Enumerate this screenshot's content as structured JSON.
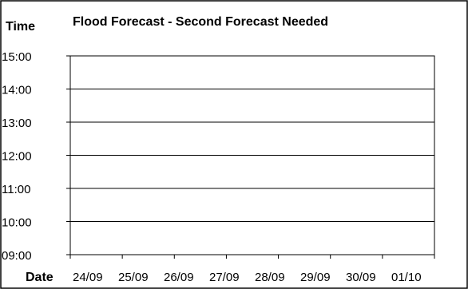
{
  "chart_data": {
    "type": "line",
    "title": "Flood Forecast - Second Forecast Needed",
    "ylabel": "Time",
    "xlabel": "Date",
    "y_ticks": [
      "15:00",
      "14:00",
      "13:00",
      "12:00",
      "11:00",
      "10:00",
      "09:00"
    ],
    "x_ticks": [
      "24/09",
      "25/09",
      "26/09",
      "27/09",
      "28/09",
      "29/09",
      "30/09",
      "01/10"
    ],
    "ylim": [
      "09:00",
      "15:00"
    ],
    "xlim": [
      "24/09",
      "01/10"
    ],
    "grid": "horizontal",
    "legend": "none",
    "series": []
  },
  "colors": {
    "background": "#ffffff",
    "frame_border": "#000000",
    "plot_border": "#000000",
    "gridline": "#000000",
    "text": "#000000"
  }
}
